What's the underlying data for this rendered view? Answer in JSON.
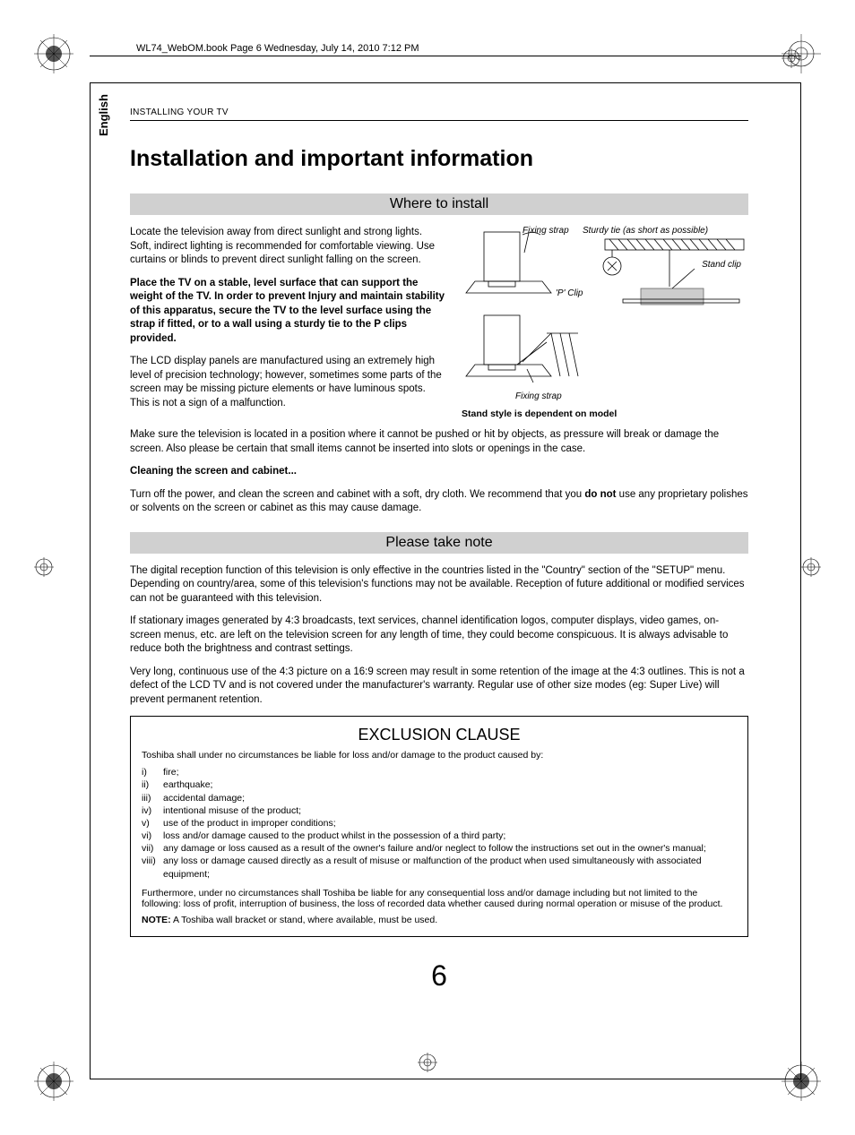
{
  "header": {
    "filename": "WL74_WebOM.book  Page 6  Wednesday, July 14, 2010  7:12 PM"
  },
  "sideTab": "English",
  "breadcrumb": "INSTALLING YOUR TV",
  "title": "Installation and important information",
  "section1": {
    "heading": "Where to install",
    "p1": "Locate the television away from direct sunlight and strong lights. Soft, indirect lighting is recommended for comfortable viewing. Use curtains or blinds to prevent direct sunlight falling on the screen.",
    "p2": "Place the TV on a stable, level surface that can support the weight of the TV. In order to prevent Injury and maintain stability of this apparatus, secure the TV to the level surface using the strap if fitted, or to a wall using a sturdy tie to the P clips provided.",
    "p3": "The LCD display panels are manufactured using an extremely high level of precision technology; however, sometimes some parts of the screen may be missing picture elements or have luminous spots. This is not a sign of a malfunction.",
    "p4": "Make sure the television is located in a position where it cannot be pushed or hit by objects, as pressure will break or damage the screen. Also please be certain that small items cannot be inserted into slots or openings in the case.",
    "cleanHeading": "Cleaning the screen and cabinet...",
    "p5a": "Turn off the power, and clean the screen and cabinet with a soft, dry cloth. We recommend that you ",
    "p5b": "do not",
    "p5c": " use any proprietary polishes or solvents on the screen or cabinet as this may cause damage.",
    "diagram": {
      "fixingStrap": "Fixing strap",
      "sturdyTie": "Sturdy tie (as short as possible)",
      "standClip": "Stand clip",
      "pClip": "'P' Clip",
      "caption": "Stand style is dependent on model"
    }
  },
  "section2": {
    "heading": "Please take note",
    "p1": "The digital reception function of this television is only effective in the countries listed in the \"Country\" section of the \"SETUP\" menu. Depending on country/area, some of this television's functions may not be available. Reception of future additional or modified services can not be guaranteed with this television.",
    "p2": "If stationary images generated by 4:3 broadcasts, text services, channel identification logos, computer displays, video games, on-screen menus, etc. are left on the television screen for any length of time, they could become conspicuous. It is always advisable to reduce both the brightness and contrast settings.",
    "p3": "Very long, continuous use of the 4:3 picture on a 16:9 screen may result in some retention of the image at the 4:3 outlines. This is not a defect of the LCD TV and is not covered under the manufacturer's warranty. Regular use of other size modes (eg: Super Live) will prevent permanent retention."
  },
  "exclusion": {
    "title": "EXCLUSION CLAUSE",
    "intro": "Toshiba shall under no circumstances be liable for loss and/or damage to the product caused by:",
    "items": [
      {
        "n": "i)",
        "t": "fire;"
      },
      {
        "n": "ii)",
        "t": "earthquake;"
      },
      {
        "n": "iii)",
        "t": "accidental damage;"
      },
      {
        "n": "iv)",
        "t": "intentional misuse of the product;"
      },
      {
        "n": "v)",
        "t": "use of the product in improper conditions;"
      },
      {
        "n": "vi)",
        "t": "loss and/or damage caused to the product whilst in the possession of a third party;"
      },
      {
        "n": "vii)",
        "t": "any damage or loss caused as a result of the owner's failure and/or neglect to follow the instructions set out in the owner's manual;"
      },
      {
        "n": "viii)",
        "t": "any loss or damage caused directly as a result of misuse or malfunction of the product when used simultaneously with associated equipment;"
      }
    ],
    "furthermore": "Furthermore, under no circumstances shall Toshiba be liable for any consequential loss and/or damage including but not limited to the following: loss of profit, interruption of business, the loss of recorded data whether caused during normal operation or misuse of the product.",
    "noteLabel": "NOTE:",
    "noteText": " A Toshiba wall bracket or stand, where available, must be used."
  },
  "pageNumber": "6",
  "colors": {
    "barBg": "#d0d0d0",
    "text": "#000000",
    "bg": "#ffffff"
  }
}
